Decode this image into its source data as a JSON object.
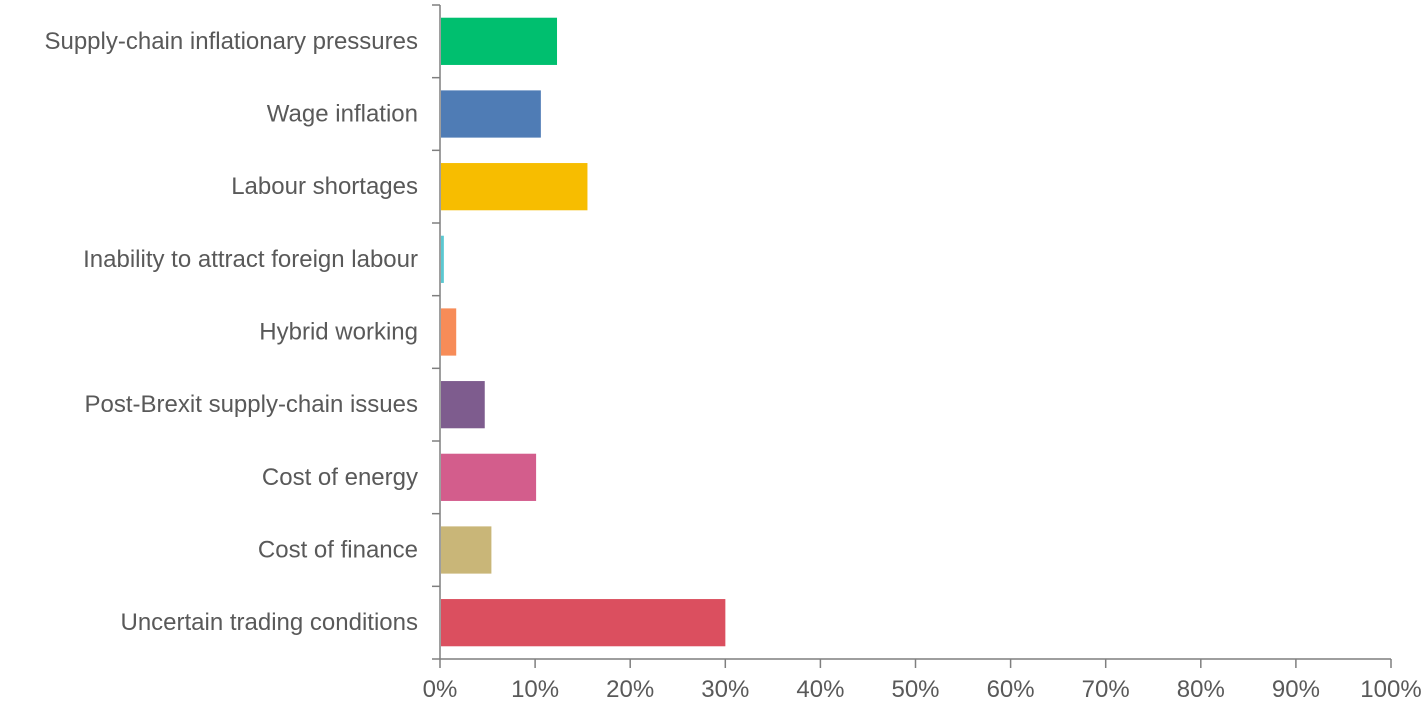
{
  "chart_data": {
    "type": "bar",
    "orientation": "horizontal",
    "title": "",
    "xlabel": "",
    "ylabel": "",
    "xlim": [
      0,
      100
    ],
    "x_ticks": [
      "0%",
      "10%",
      "20%",
      "30%",
      "40%",
      "50%",
      "60%",
      "70%",
      "80%",
      "90%",
      "100%"
    ],
    "grid": false,
    "legend": "none",
    "categories": [
      "Supply-chain inflationary pressures",
      "Wage inflation",
      "Labour shortages",
      "Inability to attract foreign labour",
      "Hybrid working",
      "Post-Brexit supply-chain issues",
      "Cost of energy",
      "Cost of finance",
      "Uncertain trading conditions"
    ],
    "values": [
      12.2,
      10.5,
      15.4,
      0.3,
      1.6,
      4.6,
      10.0,
      5.3,
      29.9
    ],
    "colors": [
      "#00bf6f",
      "#4f7cb5",
      "#f7bd00",
      "#5bc8d1",
      "#f78c58",
      "#7e5c8e",
      "#d35d8c",
      "#c9b678",
      "#db4f5f"
    ],
    "axis_color": "#7f7f7f"
  }
}
